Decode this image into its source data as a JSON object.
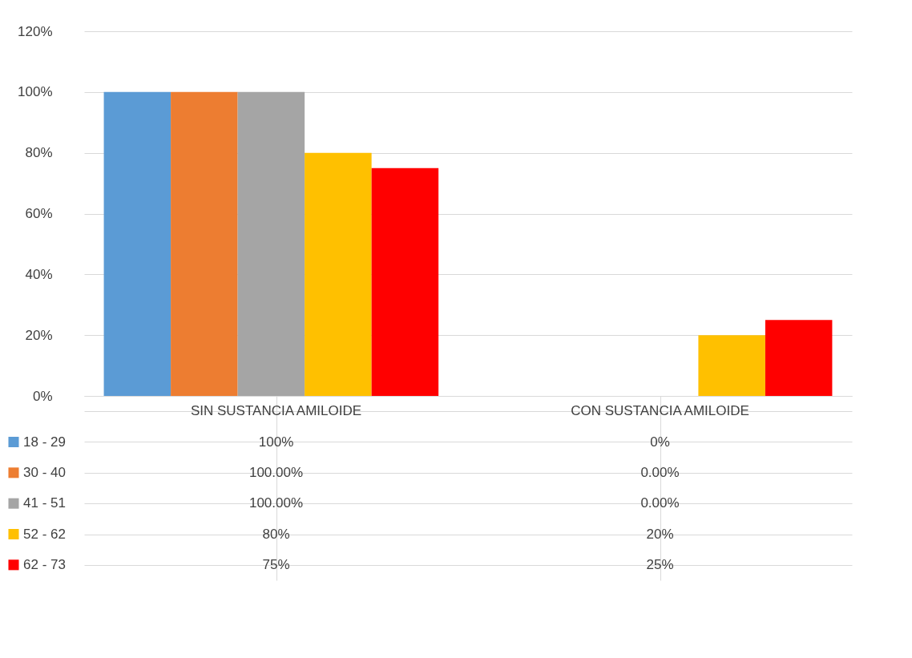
{
  "chart_data": {
    "type": "bar",
    "categories": [
      "SIN SUSTANCIA AMILOIDE",
      "CON SUSTANCIA AMILOIDE"
    ],
    "series": [
      {
        "name": "18 - 29",
        "color": "#5b9bd5",
        "values": [
          100,
          0
        ],
        "value_labels": [
          "100%",
          "0%"
        ]
      },
      {
        "name": "30 - 40",
        "color": "#ed7d31",
        "values": [
          100,
          0
        ],
        "value_labels": [
          "100.00%",
          "0.00%"
        ]
      },
      {
        "name": "41 - 51",
        "color": "#a5a5a5",
        "values": [
          100,
          0
        ],
        "value_labels": [
          "100.00%",
          "0.00%"
        ]
      },
      {
        "name": "52 - 62",
        "color": "#ffc000",
        "values": [
          80,
          20
        ],
        "value_labels": [
          "80%",
          "20%"
        ]
      },
      {
        "name": "62 - 73",
        "color": "#ff0000",
        "values": [
          75,
          25
        ],
        "value_labels": [
          "75%",
          "25%"
        ]
      }
    ],
    "ylim": [
      0,
      120
    ],
    "yticks": [
      {
        "value": 0,
        "label": "0%"
      },
      {
        "value": 20,
        "label": "20%"
      },
      {
        "value": 40,
        "label": "40%"
      },
      {
        "value": 60,
        "label": "60%"
      },
      {
        "value": 80,
        "label": "80%"
      },
      {
        "value": 100,
        "label": "100%"
      },
      {
        "value": 120,
        "label": "120%"
      }
    ],
    "grid": "y",
    "legend": "bottom"
  }
}
